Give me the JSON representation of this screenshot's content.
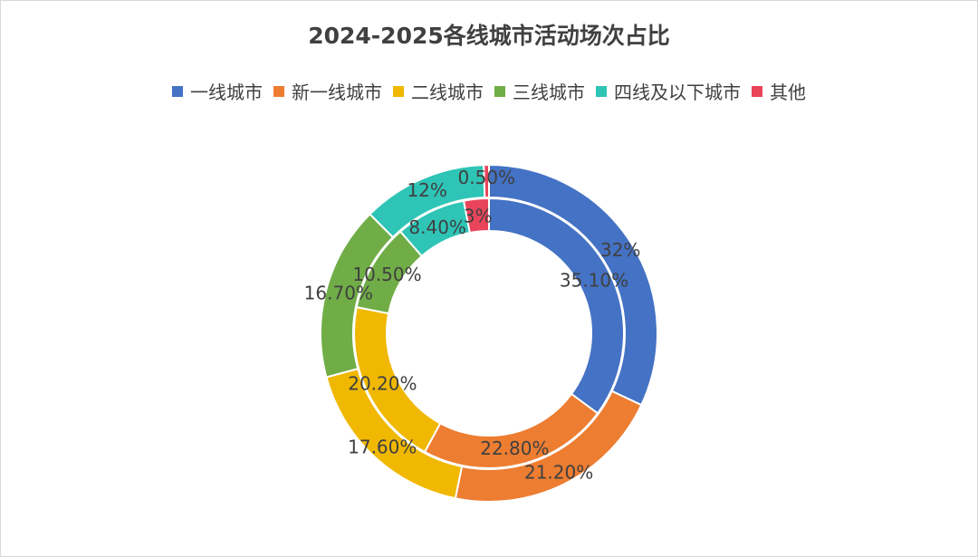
{
  "chart_data": {
    "type": "doughnut",
    "title": "2024-2025各线城市活动场次占比",
    "categories": [
      "一线城市",
      "新一线城市",
      "二线城市",
      "三线城市",
      "四线及以下城市",
      "其他"
    ],
    "colors": [
      "#4472C4",
      "#ED7D31",
      "#F0B800",
      "#70AD47",
      "#2EC4B6",
      "#E8455A"
    ],
    "series": [
      {
        "ring": "outer",
        "values": [
          32,
          21.2,
          17.6,
          16.7,
          12,
          0.5
        ],
        "labels": [
          "32%",
          "21.20%",
          "17.60%",
          "16.70%",
          "12%",
          "0.50%"
        ]
      },
      {
        "ring": "inner",
        "values": [
          35.1,
          22.8,
          20.2,
          10.5,
          8.4,
          3
        ],
        "labels": [
          "35.10%",
          "22.80%",
          "20.20%",
          "10.50%",
          "8.40%",
          "3%"
        ]
      }
    ],
    "legend_position": "top"
  }
}
